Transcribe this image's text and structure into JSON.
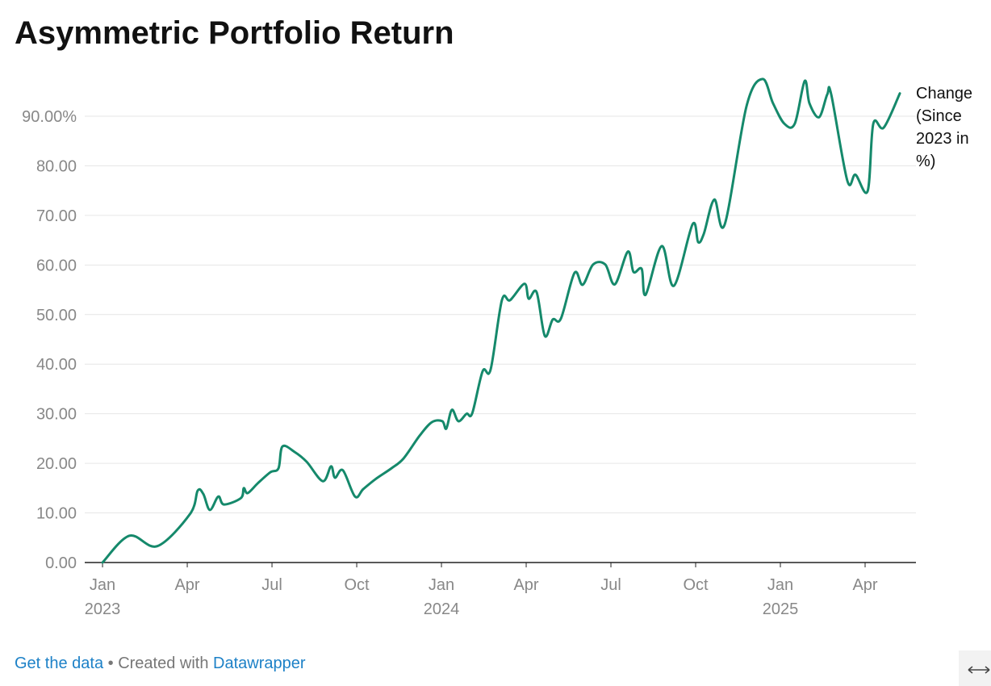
{
  "chart_data": {
    "type": "line",
    "title": "Asymmetric Portfolio Return",
    "x": [
      0,
      0.95,
      1.94,
      3.1,
      3.37,
      3.57,
      3.8,
      4.1,
      4.3,
      4.9,
      5.0,
      5.14,
      5.5,
      5.94,
      6.23,
      6.37,
      6.8,
      7.23,
      7.8,
      8.09,
      8.23,
      8.51,
      8.94,
      9.23,
      9.66,
      10.23,
      10.66,
      11.23,
      11.66,
      12.03,
      12.17,
      12.37,
      12.6,
      12.89,
      13.09,
      13.46,
      13.74,
      14.14,
      14.43,
      14.94,
      15.09,
      15.37,
      15.66,
      15.94,
      16.23,
      16.71,
      17.0,
      17.37,
      17.8,
      18.14,
      18.6,
      18.8,
      19.09,
      19.23,
      19.8,
      20.23,
      20.89,
      21.09,
      21.29,
      21.66,
      22.03,
      22.8,
      23.37,
      23.74,
      24.14,
      24.51,
      24.86,
      25.03,
      25.37,
      25.66,
      25.8,
      26.37,
      26.66,
      27.09,
      27.29,
      27.66,
      28.23
    ],
    "series": [
      {
        "name": "Change (Since 2023 in %)",
        "color": "#15896b",
        "values": [
          0,
          5.4,
          3.3,
          9.8,
          14.5,
          13.8,
          10.6,
          13.3,
          11.7,
          13,
          15,
          14,
          16,
          18.2,
          19,
          23.4,
          22.3,
          20.3,
          16.4,
          19.4,
          17.1,
          18.6,
          13.3,
          14.8,
          16.8,
          19,
          21,
          25.6,
          28.3,
          28.5,
          27,
          30.8,
          28.5,
          30,
          30.1,
          38.6,
          38.9,
          52.9,
          52.9,
          56.2,
          53.2,
          54.5,
          45.7,
          49,
          49.2,
          58.4,
          56,
          60.1,
          60.1,
          56.1,
          62.7,
          58.6,
          59.2,
          54,
          63.8,
          55.8,
          68.2,
          64.6,
          66.3,
          73.2,
          68.2,
          92,
          97.5,
          92.6,
          88.5,
          88.5,
          97.1,
          92.6,
          89.8,
          94.4,
          94.4,
          77,
          78.2,
          74.9,
          88.5,
          87.7,
          94.6
        ]
      }
    ],
    "xlim": [
      -0.63,
      28.8
    ],
    "xticks": [
      {
        "value": 0,
        "label": "Jan 2023"
      },
      {
        "value": 3,
        "label": "Apr"
      },
      {
        "value": 6,
        "label": "Jul"
      },
      {
        "value": 9,
        "label": "Oct"
      },
      {
        "value": 12,
        "label": "Jan 2024"
      },
      {
        "value": 15,
        "label": "Apr"
      },
      {
        "value": 18,
        "label": "Jul"
      },
      {
        "value": 21,
        "label": "Oct"
      },
      {
        "value": 24,
        "label": "Jan 2025"
      },
      {
        "value": 27,
        "label": "Apr"
      }
    ],
    "ylim": [
      0,
      98
    ],
    "yticks": [
      {
        "value": 0,
        "label": "0.00"
      },
      {
        "value": 10,
        "label": "10.00"
      },
      {
        "value": 20,
        "label": "20.00"
      },
      {
        "value": 30,
        "label": "30.00"
      },
      {
        "value": 40,
        "label": "40.00"
      },
      {
        "value": 50,
        "label": "50.00"
      },
      {
        "value": 60,
        "label": "60.00"
      },
      {
        "value": 70,
        "label": "70.00"
      },
      {
        "value": 80,
        "label": "80.00"
      },
      {
        "value": 90,
        "label": "90.00%"
      }
    ],
    "grid": true
  },
  "footer": {
    "data_link": "Get the data",
    "separator": " • Created with ",
    "credit_link": "Datawrapper"
  }
}
